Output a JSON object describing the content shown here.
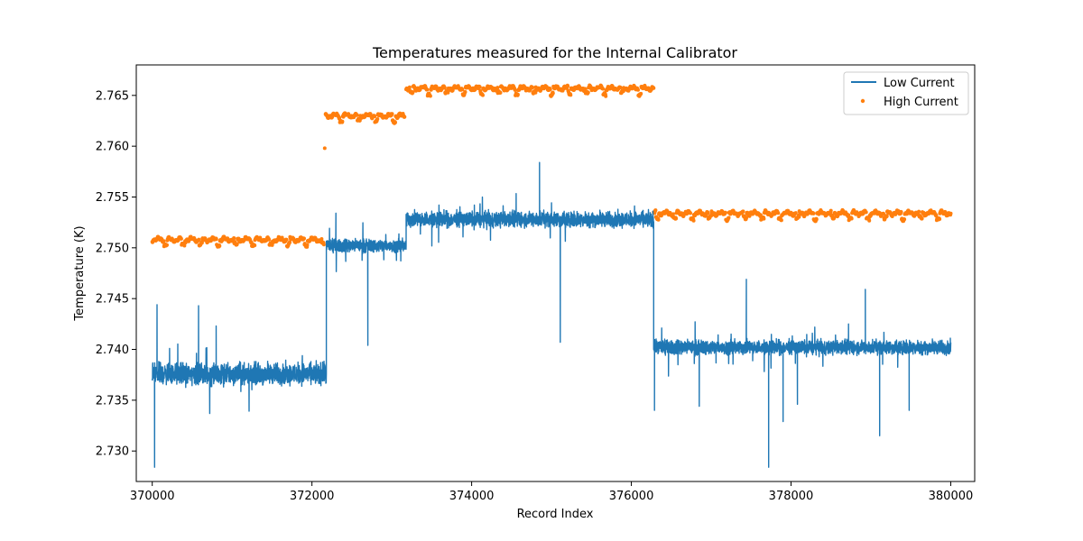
{
  "chart_data": {
    "type": "line",
    "title": "Temperatures measured for the Internal Calibrator",
    "xlabel": "Record Index",
    "ylabel": "Temperature (K)",
    "xlim": [
      369800,
      380300
    ],
    "ylim": [
      2.727,
      2.768
    ],
    "xticks": [
      370000,
      372000,
      374000,
      376000,
      378000,
      380000
    ],
    "yticks": [
      2.73,
      2.735,
      2.74,
      2.745,
      2.75,
      2.755,
      2.76,
      2.765
    ],
    "grid": false,
    "legend_position": "top-right",
    "colors": {
      "low": "#1f77b4",
      "high": "#ff7f0e"
    },
    "series": [
      {
        "name": "Low Current",
        "style": "line",
        "segments": [
          {
            "x_start": 370000,
            "x_end": 372180,
            "mean": 2.7376,
            "band": 0.0015
          },
          {
            "x_start": 372180,
            "x_end": 373180,
            "mean": 2.7502,
            "band": 0.0009
          },
          {
            "x_start": 373180,
            "x_end": 376280,
            "mean": 2.7528,
            "band": 0.0011
          },
          {
            "x_start": 376280,
            "x_end": 380000,
            "mean": 2.7402,
            "band": 0.001
          }
        ],
        "spikes": [
          [
            370030,
            2.7284
          ],
          [
            370060,
            2.7444
          ],
          [
            370580,
            2.7443
          ],
          [
            370800,
            2.7423
          ],
          [
            372300,
            2.7534
          ],
          [
            372700,
            2.7404
          ],
          [
            374850,
            2.7584
          ],
          [
            375110,
            2.7407
          ],
          [
            376290,
            2.734
          ],
          [
            376850,
            2.7344
          ],
          [
            377440,
            2.7469
          ],
          [
            377720,
            2.7284
          ],
          [
            377900,
            2.7329
          ],
          [
            378080,
            2.7346
          ],
          [
            378930,
            2.7459
          ],
          [
            379110,
            2.7315
          ],
          [
            379480,
            2.734
          ]
        ]
      },
      {
        "name": "High Current",
        "style": "scatter",
        "segments": [
          {
            "x_start": 370000,
            "x_end": 372150,
            "mean": 2.7508,
            "band": 0.0003
          },
          {
            "x_start": 372170,
            "x_end": 373160,
            "mean": 2.763,
            "band": 0.0003
          },
          {
            "x_start": 373180,
            "x_end": 376280,
            "mean": 2.7657,
            "band": 0.0003
          },
          {
            "x_start": 376280,
            "x_end": 380000,
            "mean": 2.7534,
            "band": 0.0003
          }
        ],
        "outliers": [
          [
            372160,
            2.7598
          ]
        ]
      }
    ]
  }
}
